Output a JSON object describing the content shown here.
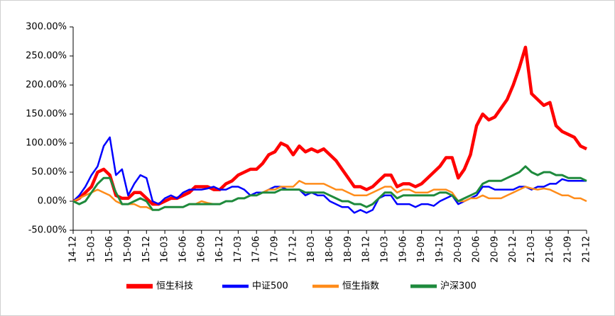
{
  "chart_data": {
    "type": "line",
    "categories": [
      "14-12",
      null,
      null,
      "15-03",
      null,
      null,
      "15-06",
      null,
      null,
      "15-09",
      null,
      null,
      "15-12",
      null,
      null,
      "16-03",
      null,
      null,
      "16-06",
      null,
      null,
      "16-09",
      null,
      null,
      "16-12",
      null,
      null,
      "17-03",
      null,
      null,
      "17-06",
      null,
      null,
      "17-09",
      null,
      null,
      "17-12",
      null,
      null,
      "18-03",
      null,
      null,
      "18-06",
      null,
      null,
      "18-09",
      null,
      null,
      "18-12",
      null,
      null,
      "19-03",
      null,
      null,
      "19-06",
      null,
      null,
      "19-09",
      null,
      null,
      "19-12",
      null,
      null,
      "20-03",
      null,
      null,
      "20-06",
      null,
      null,
      "20-09",
      null,
      null,
      "20-12",
      null,
      null,
      "21-03",
      null,
      null,
      "21-06",
      null,
      null,
      "21-09",
      null,
      null,
      "21-12"
    ],
    "series": [
      {
        "name": "恒生科技",
        "color": "#ff0000",
        "values": [
          0,
          5,
          15,
          25,
          50,
          55,
          45,
          10,
          5,
          5,
          15,
          15,
          5,
          -5,
          -5,
          0,
          5,
          5,
          10,
          15,
          25,
          25,
          25,
          20,
          20,
          30,
          35,
          45,
          50,
          55,
          55,
          65,
          80,
          85,
          100,
          95,
          80,
          95,
          85,
          90,
          85,
          90,
          80,
          70,
          55,
          40,
          25,
          25,
          20,
          25,
          35,
          45,
          45,
          25,
          30,
          30,
          25,
          30,
          40,
          50,
          60,
          75,
          75,
          40,
          55,
          80,
          130,
          150,
          140,
          145,
          160,
          175,
          200,
          230,
          265,
          185,
          175,
          165,
          170,
          130,
          120,
          115,
          110,
          95,
          90
        ]
      },
      {
        "name": "中证500",
        "color": "#0000ff",
        "values": [
          0,
          10,
          25,
          45,
          60,
          95,
          110,
          45,
          55,
          10,
          30,
          45,
          40,
          0,
          -5,
          5,
          10,
          5,
          15,
          20,
          20,
          20,
          22,
          25,
          20,
          20,
          25,
          25,
          20,
          10,
          15,
          15,
          20,
          25,
          25,
          20,
          20,
          20,
          10,
          15,
          10,
          10,
          0,
          -5,
          -10,
          -10,
          -20,
          -15,
          -20,
          -15,
          5,
          10,
          10,
          -5,
          -5,
          -5,
          -10,
          -5,
          -5,
          -8,
          0,
          5,
          10,
          -5,
          0,
          5,
          10,
          25,
          25,
          20,
          20,
          20,
          20,
          25,
          25,
          20,
          25,
          25,
          30,
          30,
          38,
          35,
          35,
          35,
          35
        ]
      },
      {
        "name": "恒生指数",
        "color": "#ff8c1a",
        "values": [
          0,
          5,
          10,
          15,
          20,
          15,
          10,
          0,
          -5,
          -5,
          -5,
          -10,
          -10,
          -15,
          -15,
          -10,
          -10,
          -10,
          -10,
          -5,
          -5,
          0,
          -3,
          -5,
          -5,
          0,
          0,
          5,
          5,
          10,
          10,
          15,
          20,
          20,
          25,
          25,
          25,
          35,
          30,
          30,
          30,
          30,
          25,
          20,
          20,
          15,
          10,
          10,
          10,
          15,
          20,
          25,
          25,
          15,
          20,
          20,
          15,
          15,
          15,
          20,
          20,
          20,
          15,
          0,
          0,
          5,
          5,
          10,
          5,
          5,
          5,
          10,
          15,
          20,
          25,
          22,
          20,
          22,
          20,
          15,
          10,
          10,
          5,
          5,
          0
        ]
      },
      {
        "name": "沪深300",
        "color": "#1e8a3c",
        "values": [
          0,
          -5,
          0,
          15,
          30,
          40,
          40,
          15,
          -5,
          -5,
          0,
          5,
          0,
          -15,
          -15,
          -10,
          -10,
          -10,
          -10,
          -5,
          -5,
          -5,
          -5,
          -5,
          -5,
          0,
          0,
          5,
          5,
          10,
          10,
          15,
          15,
          15,
          20,
          20,
          20,
          20,
          15,
          15,
          15,
          15,
          10,
          5,
          0,
          0,
          -5,
          -5,
          -10,
          -5,
          5,
          15,
          15,
          5,
          10,
          10,
          10,
          10,
          10,
          10,
          15,
          15,
          10,
          0,
          5,
          10,
          15,
          30,
          35,
          35,
          35,
          40,
          45,
          50,
          60,
          50,
          45,
          50,
          50,
          45,
          45,
          40,
          40,
          40,
          35
        ]
      }
    ],
    "ylim": [
      -50,
      300
    ],
    "yticks": [
      {
        "value": -50,
        "label": "-50.00%"
      },
      {
        "value": 0,
        "label": "0.00%"
      },
      {
        "value": 50,
        "label": "50.00%"
      },
      {
        "value": 100,
        "label": "100.00%"
      },
      {
        "value": 150,
        "label": "150.00%"
      },
      {
        "value": 200,
        "label": "200.00%"
      },
      {
        "value": 250,
        "label": "250.00%"
      },
      {
        "value": 300,
        "label": "300.00%"
      }
    ],
    "grid": false,
    "legend": "bottom"
  }
}
